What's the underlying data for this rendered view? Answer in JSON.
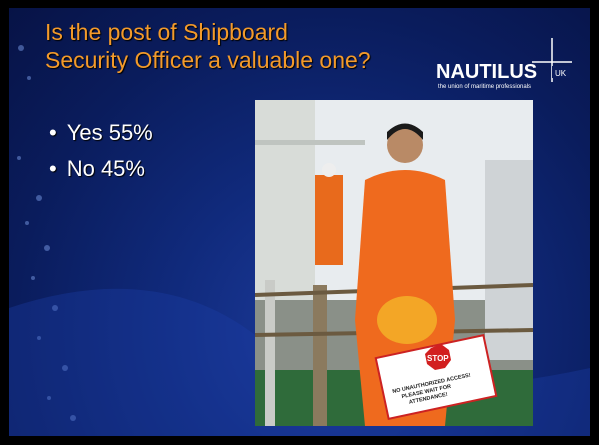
{
  "slide": {
    "title": "Is the post of Shipboard Security Officer a valuable one?",
    "bullets": [
      "Yes 55%",
      "No 45%"
    ],
    "logo": {
      "name": "NAUTILUS",
      "badge": "UK",
      "tagline": "the union of maritime professionals"
    },
    "photo": {
      "sign_title": "STOP",
      "sign_lines": [
        "NO UNAUTHORIZED ACCESS!",
        "PLEASE WAIT FOR",
        "ATTENDANCE!"
      ]
    }
  }
}
